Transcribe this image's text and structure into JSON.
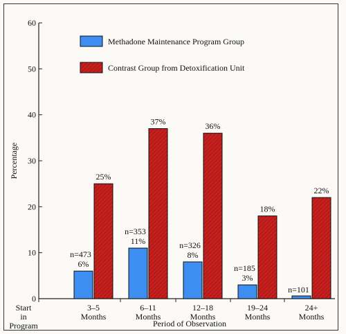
{
  "chart_data": {
    "type": "bar",
    "title": "",
    "xlabel": "Period of Observation",
    "ylabel": "Percentage",
    "ylim": [
      0,
      60
    ],
    "yticks": [
      0,
      10,
      20,
      30,
      40,
      50,
      60
    ],
    "grid": false,
    "legend_position": "top",
    "start_label": [
      "Start",
      "in",
      "Program"
    ],
    "categories": [
      [
        "3–5",
        "Months"
      ],
      [
        "6–11",
        "Months"
      ],
      [
        "12–18",
        "Months"
      ],
      [
        "19–24",
        "Months"
      ],
      [
        "24+",
        "Months"
      ]
    ],
    "series": [
      {
        "name": "Methadone Maintenance Program Group",
        "color": "#3d8ef0",
        "values": [
          6,
          11,
          8,
          3,
          0.6
        ],
        "labels": [
          "6%",
          "11%",
          "8%",
          "3%",
          ""
        ],
        "n_labels": [
          "n=473",
          "n=353",
          "n=326",
          "n=185",
          "n=101"
        ]
      },
      {
        "name": "Contrast Group from Detoxification Unit",
        "color": "#c8201e",
        "values": [
          25,
          37,
          36,
          18,
          22
        ],
        "labels": [
          "25%",
          "37%",
          "36%",
          "18%",
          "22%"
        ]
      }
    ]
  }
}
